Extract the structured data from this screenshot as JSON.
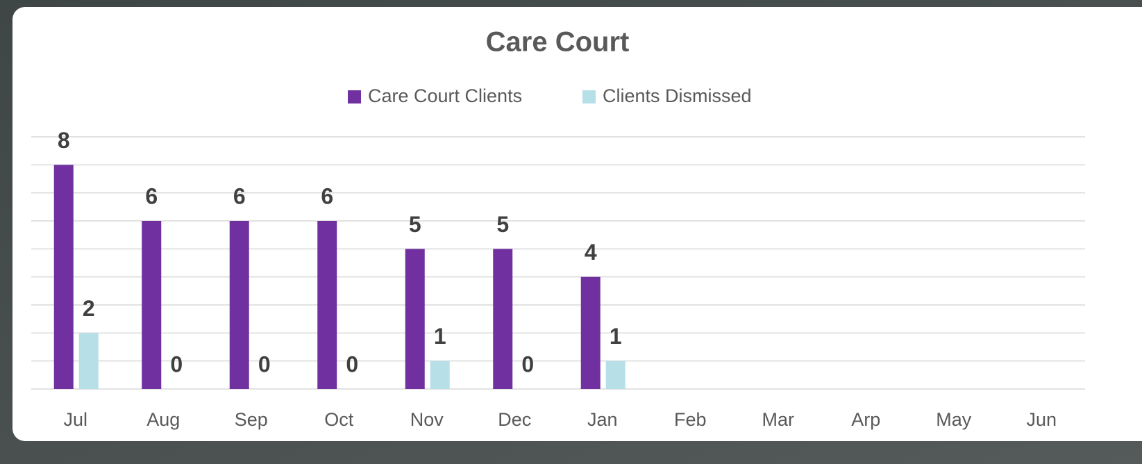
{
  "chart_data": {
    "type": "bar",
    "title": "Care Court",
    "categories": [
      "Jul",
      "Aug",
      "Sep",
      "Oct",
      "Nov",
      "Dec",
      "Jan",
      "Feb",
      "Mar",
      "Arp",
      "May",
      "Jun"
    ],
    "series": [
      {
        "name": "Care Court Clients",
        "color": "#7030a0",
        "values": [
          8,
          6,
          6,
          6,
          5,
          5,
          4,
          null,
          null,
          null,
          null,
          null
        ]
      },
      {
        "name": "Clients Dismissed",
        "color": "#b7dfe8",
        "values": [
          2,
          0,
          0,
          0,
          1,
          0,
          1,
          null,
          null,
          null,
          null,
          null
        ]
      }
    ],
    "ylim": [
      0,
      9
    ],
    "yticks": [
      0,
      1,
      2,
      3,
      4,
      5,
      6,
      7,
      8,
      9
    ],
    "grid": true,
    "legend": "top"
  }
}
